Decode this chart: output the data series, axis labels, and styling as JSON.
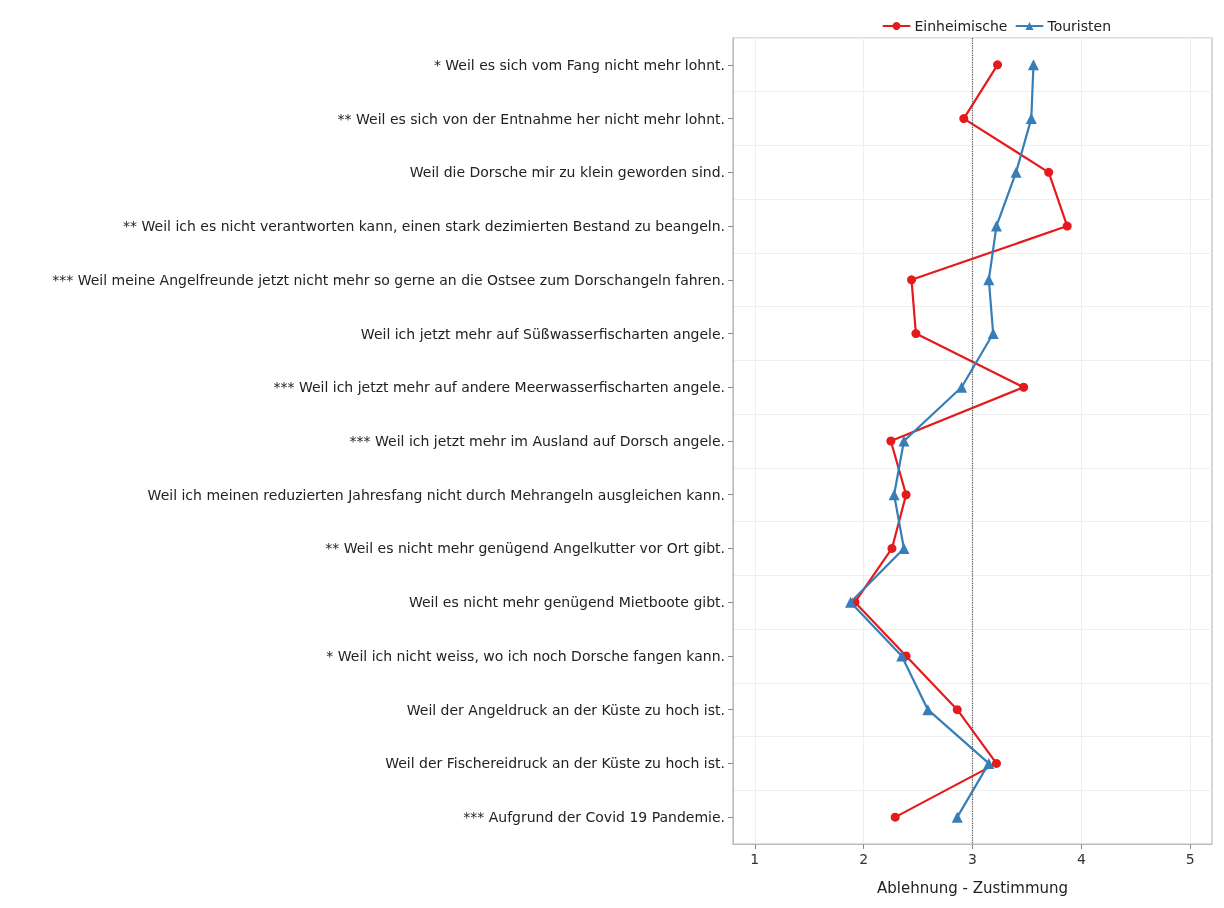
{
  "chart_data": {
    "type": "line",
    "orientation": "horizontal",
    "xlabel": "Ablehnung - Zustimmung",
    "categories": [
      "* Weil es sich vom Fang nicht mehr lohnt.",
      "** Weil es sich von der Entnahme her nicht mehr lohnt.",
      "Weil die Dorsche mir zu klein geworden sind.",
      "** Weil ich es nicht verantworten kann, einen stark dezimierten Bestand zu beangeln.",
      "*** Weil meine Angelfreunde jetzt nicht mehr so gerne an die Ostsee zum Dorschangeln fahren.",
      "Weil ich jetzt mehr auf Süßwasserfischarten angele.",
      "*** Weil ich jetzt mehr auf andere Meerwasserfischarten angele.",
      "*** Weil ich jetzt mehr im Ausland auf Dorsch angele.",
      "Weil ich meinen reduzierten Jahresfang nicht durch Mehrangeln ausgleichen kann.",
      "** Weil es nicht mehr genügend Angelkutter vor Ort gibt.",
      "Weil es nicht mehr genügend Mietboote gibt.",
      "* Weil ich nicht weiss, wo ich noch Dorsche fangen kann.",
      "Weil der Angeldruck an der Küste zu hoch ist.",
      "Weil der Fischereidruck an der Küste zu hoch ist.",
      "*** Aufgrund der Covid 19 Pandemie."
    ],
    "series": [
      {
        "name": "Einheimische",
        "color": "#e41a1c",
        "marker": "circle",
        "values": [
          3.23,
          2.92,
          3.7,
          3.87,
          2.44,
          2.48,
          3.47,
          2.25,
          2.39,
          2.26,
          1.92,
          2.39,
          2.86,
          3.22,
          2.29
        ]
      },
      {
        "name": "Touristen",
        "color": "#377eb8",
        "marker": "triangle",
        "values": [
          3.56,
          3.54,
          3.4,
          3.22,
          3.15,
          3.19,
          2.9,
          2.37,
          2.28,
          2.37,
          1.88,
          2.35,
          2.59,
          3.15,
          2.86
        ]
      }
    ],
    "xlim": [
      0.8,
      5.2
    ],
    "xticks": [
      1,
      2,
      3,
      4,
      5
    ],
    "ref_lines": [
      {
        "axis": "x",
        "value": 3,
        "color": "#555555",
        "line_style": "dotted"
      }
    ],
    "grid": true,
    "legend": "top right",
    "line_style": "solid"
  }
}
